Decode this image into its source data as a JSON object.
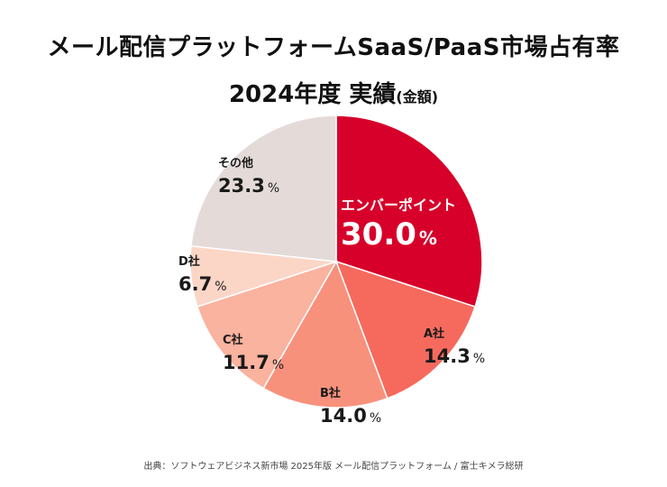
{
  "title_line1": "メール配信プラットフォームSaaS/PaaS市場占有率",
  "title_line2_main": "2024年度 実績",
  "title_line2_sub": "(金額)",
  "source": "出典：ソフトウェアビジネス新市場 2025年版 メール配信プラットフォーム / 富士キメラ総研",
  "chart_data": {
    "type": "pie",
    "title": "メール配信プラットフォームSaaS/PaaS市場占有率 2024年度 実績(金額)",
    "unit": "%",
    "slices": [
      {
        "label": "エンバーポイント",
        "value": 30.0,
        "display": "30.0",
        "color": "#d7002a",
        "text_color": "#ffffff"
      },
      {
        "label": "A社",
        "value": 14.3,
        "display": "14.3",
        "color": "#f66a5e",
        "text_color": "#1a1a1a"
      },
      {
        "label": "B社",
        "value": 14.0,
        "display": "14.0",
        "color": "#f8917c",
        "text_color": "#1a1a1a"
      },
      {
        "label": "C社",
        "value": 11.7,
        "display": "11.7",
        "color": "#f9b39f",
        "text_color": "#1a1a1a"
      },
      {
        "label": "D社",
        "value": 6.7,
        "display": "6.7",
        "color": "#fbd6c7",
        "text_color": "#1a1a1a"
      },
      {
        "label": "その他",
        "value": 23.3,
        "display": "23.3",
        "color": "#e4dbd9",
        "text_color": "#1a1a1a"
      }
    ]
  }
}
